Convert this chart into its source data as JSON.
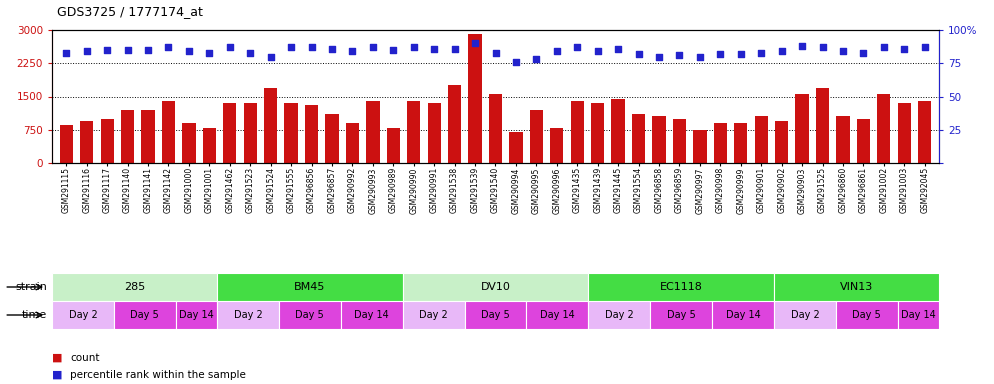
{
  "title": "GDS3725 / 1777174_at",
  "samples": [
    "GSM291115",
    "GSM291116",
    "GSM291117",
    "GSM291140",
    "GSM291141",
    "GSM291142",
    "GSM291000",
    "GSM291001",
    "GSM291462",
    "GSM291523",
    "GSM291524",
    "GSM291555",
    "GSM296856",
    "GSM296857",
    "GSM290992",
    "GSM290993",
    "GSM290989",
    "GSM290990",
    "GSM290991",
    "GSM291538",
    "GSM291539",
    "GSM291540",
    "GSM290994",
    "GSM290995",
    "GSM290996",
    "GSM291435",
    "GSM291439",
    "GSM291445",
    "GSM291554",
    "GSM296858",
    "GSM296859",
    "GSM290997",
    "GSM290998",
    "GSM290999",
    "GSM290901",
    "GSM290902",
    "GSM290903",
    "GSM291525",
    "GSM296860",
    "GSM296861",
    "GSM291002",
    "GSM291003",
    "GSM292045"
  ],
  "counts": [
    850,
    950,
    1000,
    1200,
    1200,
    1400,
    900,
    800,
    1350,
    1350,
    1700,
    1350,
    1300,
    1100,
    900,
    1400,
    800,
    1400,
    1350,
    1750,
    2900,
    1550,
    700,
    1200,
    800,
    1400,
    1350,
    1450,
    1100,
    1050,
    1000,
    750,
    900,
    900,
    1050,
    950,
    1550,
    1700,
    1050,
    1000,
    1550,
    1350,
    1400
  ],
  "percentiles": [
    83,
    84,
    85,
    85,
    85,
    87,
    84,
    83,
    87,
    83,
    80,
    87,
    87,
    86,
    84,
    87,
    85,
    87,
    86,
    86,
    90,
    83,
    76,
    78,
    84,
    87,
    84,
    86,
    82,
    80,
    81,
    80,
    82,
    82,
    83,
    84,
    88,
    87,
    84,
    83,
    87,
    86,
    87
  ],
  "strains": [
    "285",
    "BM45",
    "DV10",
    "EC1118",
    "VIN13"
  ],
  "strain_sizes": [
    8,
    9,
    9,
    9,
    8
  ],
  "strain_bg_colors": [
    "#c8f0c8",
    "#44dd44",
    "#c8f0c8",
    "#44dd44",
    "#44dd44"
  ],
  "time_groups": [
    {
      "label": "Day 2",
      "size": 3,
      "color": "#e8b8f8"
    },
    {
      "label": "Day 5",
      "size": 3,
      "color": "#dd44dd"
    },
    {
      "label": "Day 14",
      "size": 2,
      "color": "#dd44dd"
    },
    {
      "label": "Day 2",
      "size": 3,
      "color": "#e8b8f8"
    },
    {
      "label": "Day 5",
      "size": 3,
      "color": "#dd44dd"
    },
    {
      "label": "Day 14",
      "size": 3,
      "color": "#dd44dd"
    },
    {
      "label": "Day 2",
      "size": 3,
      "color": "#e8b8f8"
    },
    {
      "label": "Day 5",
      "size": 3,
      "color": "#dd44dd"
    },
    {
      "label": "Day 14",
      "size": 3,
      "color": "#dd44dd"
    },
    {
      "label": "Day 2",
      "size": 3,
      "color": "#e8b8f8"
    },
    {
      "label": "Day 5",
      "size": 3,
      "color": "#dd44dd"
    },
    {
      "label": "Day 14",
      "size": 3,
      "color": "#dd44dd"
    },
    {
      "label": "Day 2",
      "size": 3,
      "color": "#e8b8f8"
    },
    {
      "label": "Day 5",
      "size": 3,
      "color": "#dd44dd"
    },
    {
      "label": "Day 14",
      "size": 2,
      "color": "#dd44dd"
    }
  ],
  "bar_color": "#cc1111",
  "dot_color": "#2222cc",
  "ylim_left": [
    0,
    3000
  ],
  "ylim_right": [
    0,
    100
  ],
  "yticks_left": [
    0,
    750,
    1500,
    2250,
    3000
  ],
  "yticks_right": [
    0,
    25,
    50,
    75,
    100
  ],
  "grid_values": [
    750,
    1500,
    2250
  ]
}
